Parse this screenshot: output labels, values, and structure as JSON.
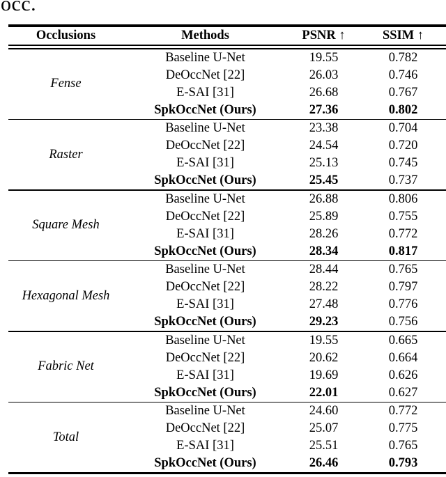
{
  "caption_fragment": "occ.",
  "table": {
    "headers": {
      "occlusions": "Occlusions",
      "methods": "Methods",
      "psnr": "PSNR ↑",
      "ssim": "SSIM ↑"
    },
    "groups": [
      {
        "occlusion": "Fense",
        "rows": [
          {
            "method": "Baseline U-Net",
            "psnr": "19.55",
            "ssim": "0.782"
          },
          {
            "method": "DeOccNet [22]",
            "psnr": "26.03",
            "ssim": "0.746"
          },
          {
            "method": "E-SAI [31]",
            "psnr": "26.68",
            "ssim": "0.767"
          },
          {
            "method": "SpkOccNet (Ours)",
            "psnr": "27.36",
            "ssim": "0.802"
          }
        ]
      },
      {
        "occlusion": "Raster",
        "rows": [
          {
            "method": "Baseline U-Net",
            "psnr": "23.38",
            "ssim": "0.704"
          },
          {
            "method": "DeOccNet [22]",
            "psnr": "24.54",
            "ssim": "0.720"
          },
          {
            "method": "E-SAI [31]",
            "psnr": "25.13",
            "ssim": "0.745"
          },
          {
            "method": "SpkOccNet (Ours)",
            "psnr": "25.45",
            "ssim": "0.737"
          }
        ]
      },
      {
        "occlusion": "Square Mesh",
        "rows": [
          {
            "method": "Baseline U-Net",
            "psnr": "26.88",
            "ssim": "0.806"
          },
          {
            "method": "DeOccNet [22]",
            "psnr": "25.89",
            "ssim": "0.755"
          },
          {
            "method": "E-SAI [31]",
            "psnr": "28.26",
            "ssim": "0.772"
          },
          {
            "method": "SpkOccNet (Ours)",
            "psnr": "28.34",
            "ssim": "0.817"
          }
        ]
      },
      {
        "occlusion": "Hexagonal Mesh",
        "rows": [
          {
            "method": "Baseline U-Net",
            "psnr": "28.44",
            "ssim": "0.765"
          },
          {
            "method": "DeOccNet [22]",
            "psnr": "28.22",
            "ssim": "0.797"
          },
          {
            "method": "E-SAI [31]",
            "psnr": "27.48",
            "ssim": "0.776"
          },
          {
            "method": "SpkOccNet (Ours)",
            "psnr": "29.23",
            "ssim": "0.756"
          }
        ]
      },
      {
        "occlusion": "Fabric Net",
        "rows": [
          {
            "method": "Baseline U-Net",
            "psnr": "19.55",
            "ssim": "0.665"
          },
          {
            "method": "DeOccNet [22]",
            "psnr": "20.62",
            "ssim": "0.664"
          },
          {
            "method": "E-SAI [31]",
            "psnr": "19.69",
            "ssim": "0.626"
          },
          {
            "method": "SpkOccNet (Ours)",
            "psnr": "22.01",
            "ssim": "0.627"
          }
        ]
      },
      {
        "occlusion": "Total",
        "rows": [
          {
            "method": "Baseline U-Net",
            "psnr": "24.60",
            "ssim": "0.772"
          },
          {
            "method": "DeOccNet [22]",
            "psnr": "25.07",
            "ssim": "0.775"
          },
          {
            "method": "E-SAI [31]",
            "psnr": "25.51",
            "ssim": "0.765"
          },
          {
            "method": "SpkOccNet (Ours)",
            "psnr": "26.46",
            "ssim": "0.793"
          }
        ]
      }
    ]
  }
}
